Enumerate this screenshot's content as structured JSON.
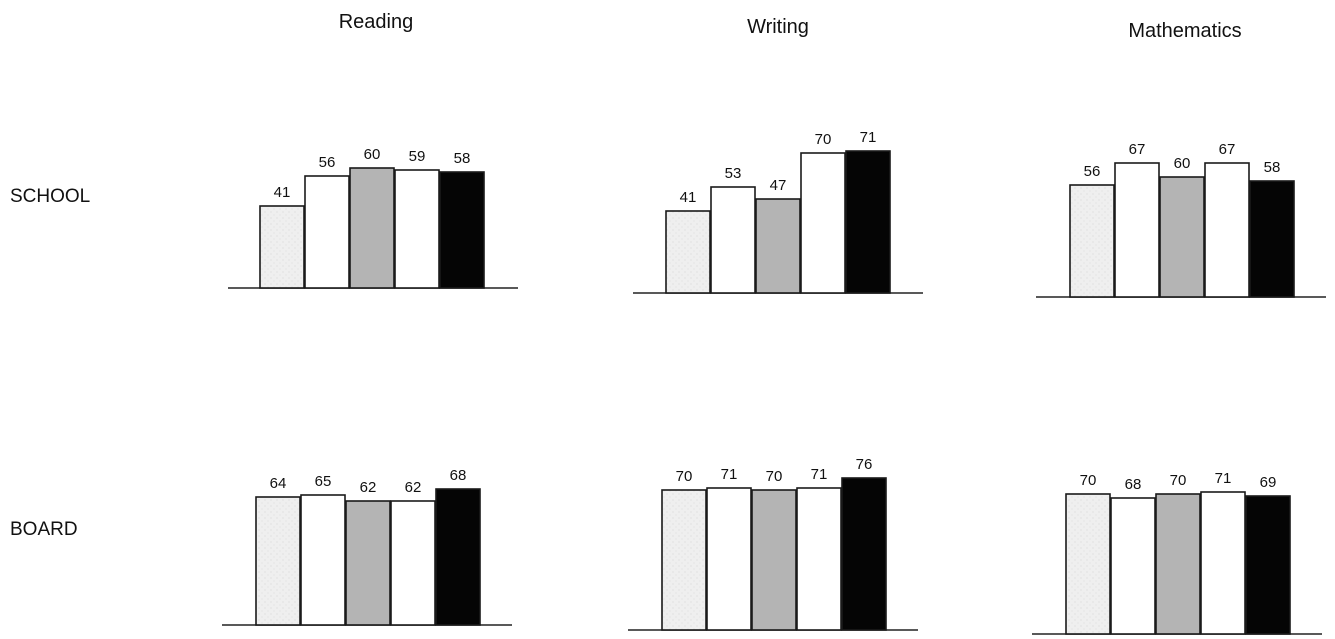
{
  "subjects": [
    "Reading",
    "Writing",
    "Mathematics"
  ],
  "rows": [
    "SCHOOL",
    "BOARD"
  ],
  "bar_fills": [
    "#eeeeee",
    "#ffffff",
    "#b4b4b4",
    "#ffffff",
    "#050505"
  ],
  "chart_data": [
    {
      "type": "bar",
      "title": "Reading",
      "row": "SCHOOL",
      "values": [
        41,
        56,
        60,
        59,
        58
      ]
    },
    {
      "type": "bar",
      "title": "Writing",
      "row": "SCHOOL",
      "values": [
        41,
        53,
        47,
        70,
        71
      ]
    },
    {
      "type": "bar",
      "title": "Mathematics",
      "row": "SCHOOL",
      "values": [
        56,
        67,
        60,
        67,
        58
      ]
    },
    {
      "type": "bar",
      "title": "Reading",
      "row": "BOARD",
      "values": [
        64,
        65,
        62,
        62,
        68
      ]
    },
    {
      "type": "bar",
      "title": "Writing",
      "row": "BOARD",
      "values": [
        70,
        71,
        70,
        71,
        76
      ]
    },
    {
      "type": "bar",
      "title": "Mathematics",
      "row": "BOARD",
      "values": [
        70,
        68,
        70,
        71,
        69
      ]
    }
  ]
}
